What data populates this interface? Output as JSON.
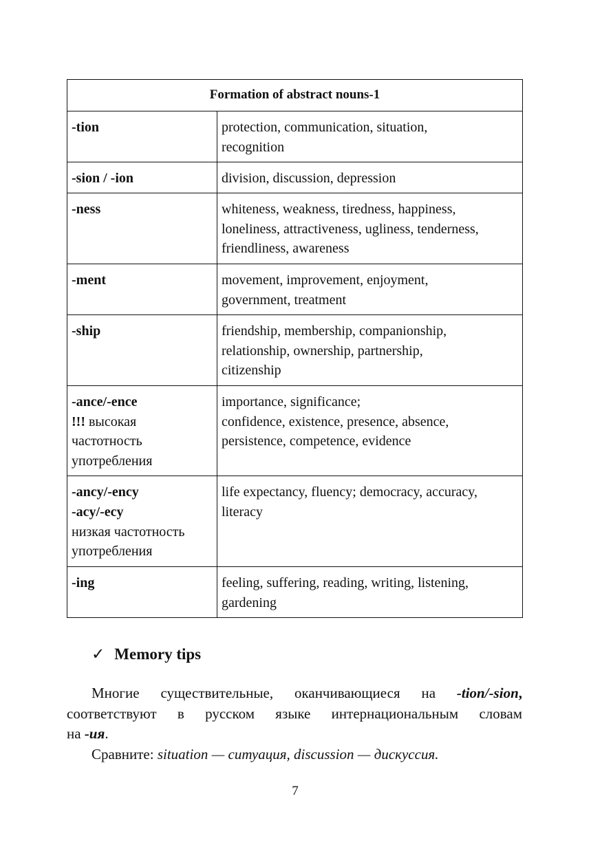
{
  "table": {
    "title": "Formation of abstract nouns-1",
    "rows": [
      {
        "suffix": "-tion",
        "examples": [
          "protection, communication, situation,",
          "recognition"
        ]
      },
      {
        "suffix": "-sion / -ion",
        "examples": [
          "division, discussion, depression"
        ]
      },
      {
        "suffix": "-ness",
        "examples": [
          "whiteness, weakness, tiredness, happiness,",
          "loneliness, attractiveness, ugliness, tenderness,",
          "friendliness, awareness"
        ]
      },
      {
        "suffix": "-ment",
        "examples": [
          "movement, improvement, enjoyment,",
          "government, treatment"
        ]
      },
      {
        "suffix": "-ship",
        "examples": [
          "friendship, membership, companionship,",
          "relationship, ownership, partnership,",
          "citizenship"
        ]
      },
      {
        "suffix": "-ance/-ence",
        "mark": "!!!",
        "note": [
          " высокая",
          "частотность",
          "употребления"
        ],
        "examples": [
          "importance, significance;",
          "confidence, existence, presence, absence,",
          "persistence, competence, evidence"
        ]
      },
      {
        "suffix": "-ancy/-ency",
        "suffix2": "-acy/-ecy",
        "note": [
          "низкая частотность",
          "употребления"
        ],
        "examples": [
          "life expectancy, fluency; democracy, accuracy,",
          "literacy"
        ]
      },
      {
        "suffix": "-ing",
        "examples": [
          "feeling, suffering, reading, writing, listening,",
          "gardening"
        ]
      }
    ]
  },
  "tips": {
    "icon": "checkmark-icon",
    "check": "✓",
    "heading": "Memory tips"
  },
  "paragraph1": {
    "t1": "Многие существительные, оканчивающиеся на ",
    "t2": "-tion/-sion",
    "t3": ",",
    "line2": "соответствуют в русском языке интернациональным словам",
    "t4": "на ",
    "t5": "-ия",
    "t6": "."
  },
  "paragraph2": {
    "label": "Сравните: ",
    "examples": "situation — ситуация, discussion — дискуссия."
  },
  "page_number": "7"
}
